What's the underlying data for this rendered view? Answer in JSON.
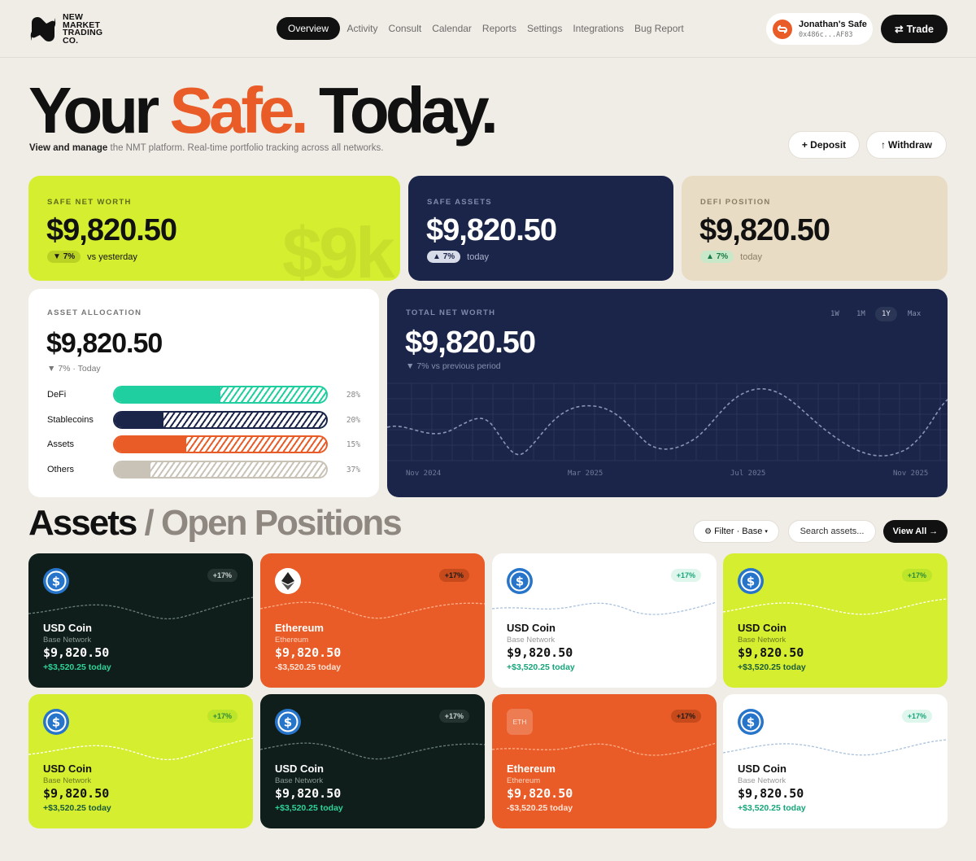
{
  "header": {
    "logo_lines": [
      "NEW",
      "MARKET",
      "TRADING",
      "CO."
    ],
    "nav": [
      "Overview",
      "Activity",
      "Consult",
      "Calendar",
      "Reports",
      "Settings",
      "Integrations",
      "Bug Report"
    ],
    "safe_name": "Jonathan's Safe",
    "safe_address": "0x486c...AF83",
    "trade_label": "Trade"
  },
  "hero": {
    "title_a": "Your",
    "title_b": "Safe.",
    "title_c": "Today.",
    "sub_bold": "View and manage",
    "sub_rest": "the NMT platform. Real-time portfolio tracking across all networks.",
    "deposit_label": "+ Deposit",
    "withdraw_label": "Withdraw"
  },
  "stats": [
    {
      "label": "SAFE NET WORTH",
      "value": "$9,820.50",
      "chip": "7%",
      "direction": "down",
      "foot": "vs yesterday",
      "ghost": "$9k"
    },
    {
      "label": "SAFE ASSETS",
      "value": "$9,820.50",
      "chip": "7%",
      "direction": "up",
      "foot": "today"
    },
    {
      "label": "DEFI POSITION",
      "value": "$9,820.50",
      "chip": "7%",
      "direction": "up",
      "foot": "today"
    }
  ],
  "allocation": {
    "label": "ASSET ALLOCATION",
    "value": "$9,820.50",
    "change": "7% · Today",
    "rows": [
      {
        "name": "DeFi",
        "pct": "28%",
        "fill": 0.5,
        "color": "#1fcf9f"
      },
      {
        "name": "Stablecoins",
        "pct": "20%",
        "fill": 0.23,
        "color": "#1b254a"
      },
      {
        "name": "Assets",
        "pct": "15%",
        "fill": 0.34,
        "color": "#e95c27"
      },
      {
        "name": "Others",
        "pct": "37%",
        "fill": 0.17,
        "color": "#c9c3b7"
      }
    ]
  },
  "networth": {
    "label": "TOTAL NET WORTH",
    "value": "$9,820.50",
    "change": "7% vs previous period",
    "ranges": [
      "1W",
      "1M",
      "1Y",
      "Max"
    ],
    "active_range": "1Y",
    "x_labels": [
      "Nov 2024",
      "Mar 2025",
      "Jul 2025",
      "Nov 2025"
    ]
  },
  "assets": {
    "title": "Assets",
    "title_sep": "/",
    "title_muted": "Open Positions",
    "filter_label": "Filter · Base",
    "search_placeholder": "Search assets...",
    "view_all_label": "View All →",
    "cards": [
      {
        "name": "USD Coin",
        "network": "Base Network",
        "value": "$9,820.50",
        "delta": "+$3,520.25 today",
        "badge": "+17%",
        "theme": "dark",
        "icon": "usdc"
      },
      {
        "name": "Ethereum",
        "network": "Ethereum",
        "value": "$9,820.50",
        "delta": "-$3,520.25 today",
        "badge": "+17%",
        "theme": "orange",
        "icon": "eth"
      },
      {
        "name": "USD Coin",
        "network": "Base Network",
        "value": "$9,820.50",
        "delta": "+$3,520.25 today",
        "badge": "+17%",
        "theme": "white",
        "icon": "usdc"
      },
      {
        "name": "USD Coin",
        "network": "Base Network",
        "value": "$9,820.50",
        "delta": "+$3,520.25 today",
        "badge": "+17%",
        "theme": "lime",
        "icon": "usdc"
      },
      {
        "name": "USD Coin",
        "network": "Base Network",
        "value": "$9,820.50",
        "delta": "+$3,520.25 today",
        "badge": "+17%",
        "theme": "lime",
        "icon": "usdc"
      },
      {
        "name": "USD Coin",
        "network": "Base Network",
        "value": "$9,820.50",
        "delta": "+$3,520.25 today",
        "badge": "+17%",
        "theme": "dark",
        "icon": "usdc"
      },
      {
        "name": "Ethereum",
        "network": "Ethereum",
        "value": "$9,820.50",
        "delta": "-$3,520.25 today",
        "badge": "+17%",
        "theme": "orange",
        "icon": "eth-text",
        "icon_text": "ETH"
      },
      {
        "name": "USD Coin",
        "network": "Base Network",
        "value": "$9,820.50",
        "delta": "+$3,520.25 today",
        "badge": "+17%",
        "theme": "white",
        "icon": "usdc"
      }
    ]
  }
}
